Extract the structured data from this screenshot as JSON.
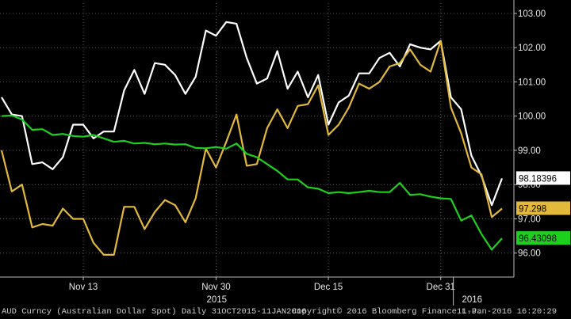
{
  "chart_data": {
    "type": "line",
    "ylim": [
      95.3,
      103.3
    ],
    "y_ticks": [
      "103.00",
      "102.00",
      "101.00",
      "100.00",
      "99.00",
      "98.00",
      "97.00",
      "96.00"
    ],
    "x_ticks": [
      "Nov 13",
      "Nov 30",
      "Dec 15",
      "Dec 31"
    ],
    "x_year_labels": [
      "2015",
      "2016"
    ],
    "colors": {
      "white": "#ffffff",
      "gold": "#e2b93b",
      "green": "#1ed01e"
    },
    "series": [
      {
        "color": "white",
        "last_label": "98.18396",
        "values": [
          100.55,
          100.05,
          100.0,
          98.6,
          98.65,
          98.45,
          98.8,
          99.75,
          99.75,
          99.35,
          99.55,
          99.55,
          100.75,
          101.35,
          100.65,
          101.55,
          101.5,
          101.2,
          100.65,
          101.15,
          102.5,
          102.35,
          102.75,
          102.7,
          101.7,
          100.95,
          101.1,
          101.9,
          100.8,
          101.3,
          100.55,
          101.2,
          99.75,
          100.4,
          100.6,
          101.25,
          101.25,
          101.7,
          101.85,
          101.45,
          102.1,
          102.0,
          101.95,
          102.2,
          100.55,
          100.2,
          98.85,
          98.25,
          97.4,
          98.18
        ]
      },
      {
        "color": "gold",
        "last_label": "97.298",
        "values": [
          99.0,
          97.8,
          98.0,
          96.75,
          96.85,
          96.8,
          97.3,
          97.0,
          97.0,
          96.3,
          95.95,
          95.95,
          97.35,
          97.35,
          96.7,
          97.2,
          97.55,
          97.4,
          96.9,
          97.6,
          99.05,
          98.5,
          99.25,
          100.05,
          98.55,
          98.6,
          99.65,
          100.2,
          99.65,
          100.3,
          100.35,
          100.9,
          99.45,
          99.75,
          100.25,
          100.95,
          100.8,
          101.0,
          101.45,
          101.55,
          101.95,
          101.5,
          101.3,
          102.2,
          100.25,
          99.5,
          98.5,
          98.3,
          97.05,
          97.3
        ]
      },
      {
        "color": "green",
        "last_label": "96.43098",
        "values": [
          100.0,
          100.02,
          99.9,
          99.6,
          99.62,
          99.45,
          99.48,
          99.42,
          99.4,
          99.45,
          99.35,
          99.25,
          99.28,
          99.2,
          99.22,
          99.18,
          99.2,
          99.17,
          99.18,
          99.07,
          99.06,
          99.1,
          99.05,
          99.2,
          98.9,
          98.8,
          98.6,
          98.4,
          98.15,
          98.15,
          97.92,
          97.88,
          97.75,
          97.78,
          97.75,
          97.78,
          97.82,
          97.78,
          97.78,
          98.05,
          97.7,
          97.72,
          97.65,
          97.6,
          97.58,
          96.95,
          97.1,
          96.55,
          96.1,
          96.43
        ]
      }
    ]
  },
  "footer": {
    "left": "AUD Curncy (Australian Dollar Spot)  Daily 31OCT2015-11JAN2016",
    "center": "Copyright© 2016 Bloomberg Finance L.P.",
    "right": "11-Jan-2016 16:20:29"
  }
}
